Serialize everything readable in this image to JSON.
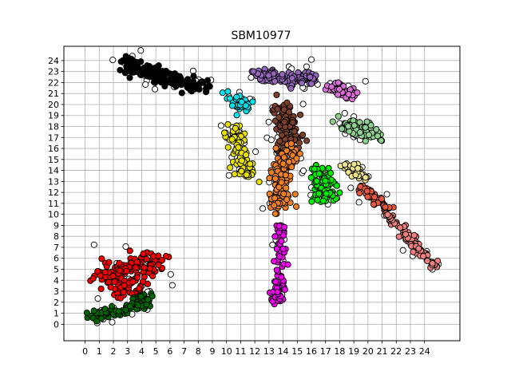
{
  "chart_data": {
    "type": "scatter",
    "title": "SBM10977",
    "xlabel": "",
    "ylabel": "",
    "xlim": [
      -1.5,
      26.5
    ],
    "ylim": [
      -1.5,
      25.3
    ],
    "xticks": [
      0,
      1,
      2,
      3,
      4,
      5,
      6,
      7,
      8,
      9,
      10,
      11,
      12,
      13,
      14,
      15,
      16,
      17,
      18,
      19,
      20,
      21,
      22,
      23,
      24
    ],
    "yticks": [
      0,
      1,
      2,
      3,
      4,
      5,
      6,
      7,
      8,
      9,
      10,
      11,
      12,
      13,
      14,
      15,
      16,
      17,
      18,
      19,
      20,
      21,
      22,
      23,
      24
    ],
    "grid": true,
    "marker_edge": "#000000",
    "clusters": [
      {
        "color": "#000000",
        "seed": 11,
        "n": 170,
        "path": [
          [
            2.5,
            23.8
          ],
          [
            4.5,
            23
          ],
          [
            6.5,
            22.2
          ],
          [
            8.5,
            21.5
          ]
        ],
        "spread": 0.7
      },
      {
        "color": "#9467bd",
        "seed": 12,
        "n": 130,
        "path": [
          [
            12.2,
            22.6
          ],
          [
            13.5,
            22.5
          ],
          [
            15,
            22.3
          ],
          [
            16.3,
            22.5
          ]
        ],
        "spread": 0.6
      },
      {
        "color": "#da70d6",
        "seed": 13,
        "n": 45,
        "path": [
          [
            17.3,
            21.6
          ],
          [
            18,
            21.3
          ],
          [
            19,
            21
          ]
        ],
        "spread": 0.5
      },
      {
        "color": "#00e5ee",
        "seed": 14,
        "n": 55,
        "path": [
          [
            10.5,
            20.6
          ],
          [
            11.5,
            19.7
          ]
        ],
        "spread": 0.6
      },
      {
        "color": "#7b3f2a",
        "seed": 15,
        "n": 110,
        "path": [
          [
            14.2,
            20
          ],
          [
            14.2,
            18
          ],
          [
            14.6,
            16.2
          ]
        ],
        "spread": 0.8
      },
      {
        "color": "#8fd18f",
        "seed": 16,
        "n": 65,
        "path": [
          [
            18,
            18.3
          ],
          [
            19.5,
            17.8
          ],
          [
            20.5,
            17
          ]
        ],
        "spread": 0.6
      },
      {
        "color": "#e8e000",
        "seed": 17,
        "n": 95,
        "path": [
          [
            10.5,
            17.5
          ],
          [
            11,
            15.5
          ],
          [
            11.5,
            13.5
          ]
        ],
        "spread": 0.65
      },
      {
        "color": "#f08020",
        "seed": 18,
        "n": 140,
        "path": [
          [
            14.5,
            16
          ],
          [
            14,
            14
          ],
          [
            13.8,
            12
          ],
          [
            13.6,
            10.5
          ]
        ],
        "spread": 0.75
      },
      {
        "color": "#00ee00",
        "seed": 19,
        "n": 95,
        "path": [
          [
            16.5,
            14
          ],
          [
            17,
            12.5
          ],
          [
            16.8,
            11.2
          ]
        ],
        "spread": 0.75
      },
      {
        "color": "#f0e68c",
        "seed": 20,
        "n": 45,
        "path": [
          [
            18.5,
            14.5
          ],
          [
            19.5,
            13.5
          ]
        ],
        "spread": 0.45
      },
      {
        "color": "#e8583e",
        "seed": 21,
        "n": 50,
        "path": [
          [
            19.5,
            12.5
          ],
          [
            20.5,
            11.5
          ],
          [
            21.5,
            10.5
          ]
        ],
        "spread": 0.35
      },
      {
        "color": "#f08080",
        "seed": 22,
        "n": 85,
        "path": [
          [
            21.5,
            10
          ],
          [
            22.8,
            8
          ],
          [
            23.8,
            6.5
          ],
          [
            25,
            5
          ]
        ],
        "spread": 0.35
      },
      {
        "color": "#ee00ee",
        "seed": 23,
        "n": 85,
        "path": [
          [
            13.8,
            9
          ],
          [
            13.8,
            6
          ],
          [
            13.6,
            3
          ],
          [
            13.5,
            2
          ]
        ],
        "spread": 0.35
      },
      {
        "color": "#ee0000",
        "seed": 24,
        "n": 160,
        "path": [
          [
            0.8,
            4
          ],
          [
            2.5,
            5
          ],
          [
            4,
            6
          ],
          [
            5,
            5.5
          ],
          [
            2,
            3
          ],
          [
            4,
            3.5
          ]
        ],
        "spread": 0.9
      },
      {
        "color": "#006400",
        "seed": 25,
        "n": 85,
        "path": [
          [
            0.5,
            0.8
          ],
          [
            2,
            1
          ],
          [
            3.5,
            1.8
          ],
          [
            4.5,
            2.2
          ]
        ],
        "spread": 0.55
      }
    ],
    "outline_points_seed": 31
  }
}
